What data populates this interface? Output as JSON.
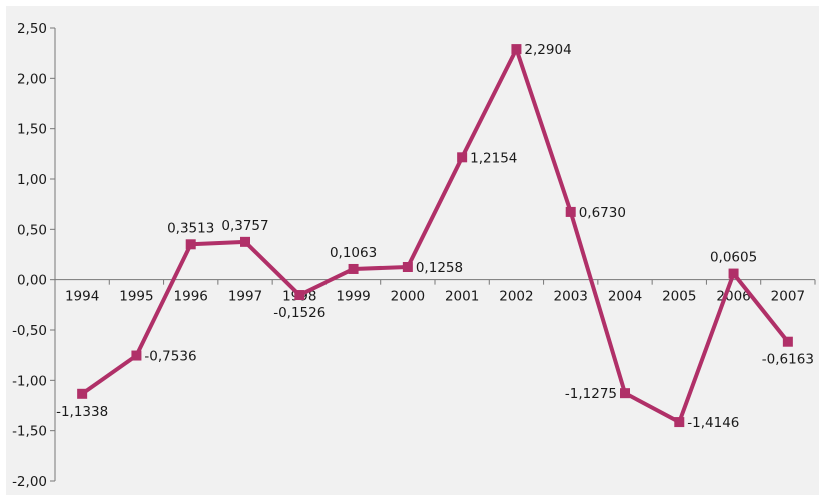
{
  "chart_data": {
    "type": "line",
    "title": "",
    "xlabel": "",
    "ylabel": "",
    "categories": [
      "1994",
      "1995",
      "1996",
      "1997",
      "1998",
      "1999",
      "2000",
      "2001",
      "2002",
      "2003",
      "2004",
      "2005",
      "2006",
      "2007"
    ],
    "series": [
      {
        "values": [
          -1.1338,
          -0.7536,
          0.3513,
          0.3757,
          -0.1526,
          0.1063,
          0.1258,
          1.2154,
          2.2904,
          0.673,
          -1.1275,
          -1.4146,
          0.0605,
          -0.6163
        ],
        "labels": [
          "-1,1338",
          "-0,7536",
          "0,3513",
          "0,3757",
          "-0,1526",
          "0,1063",
          "0,1258",
          "1,2154",
          "2,2904",
          "0,6730",
          "-1,1275",
          "-1,4146",
          "0,0605",
          "-0,6163"
        ],
        "label_positions": [
          "below",
          "right",
          "above",
          "above",
          "below",
          "above",
          "right",
          "right",
          "right",
          "right",
          "left",
          "right",
          "above",
          "below"
        ]
      }
    ],
    "y_ticks": [
      2.5,
      2.0,
      1.5,
      1.0,
      0.5,
      0.0,
      -0.5,
      -1.0,
      -1.5,
      -2.0
    ],
    "y_tick_labels": [
      "2,50",
      "2,00",
      "1,50",
      "1,00",
      "0,50",
      "0,00",
      "-0,50",
      "-1,00",
      "-1,50",
      "-2,00"
    ],
    "ylim": [
      -2.0,
      2.5
    ],
    "grid": false,
    "legend": "none",
    "colors": {
      "line": "#b03068",
      "background": "#f1f1f1",
      "axis": "#777777",
      "text": "#1a1a1a"
    }
  }
}
